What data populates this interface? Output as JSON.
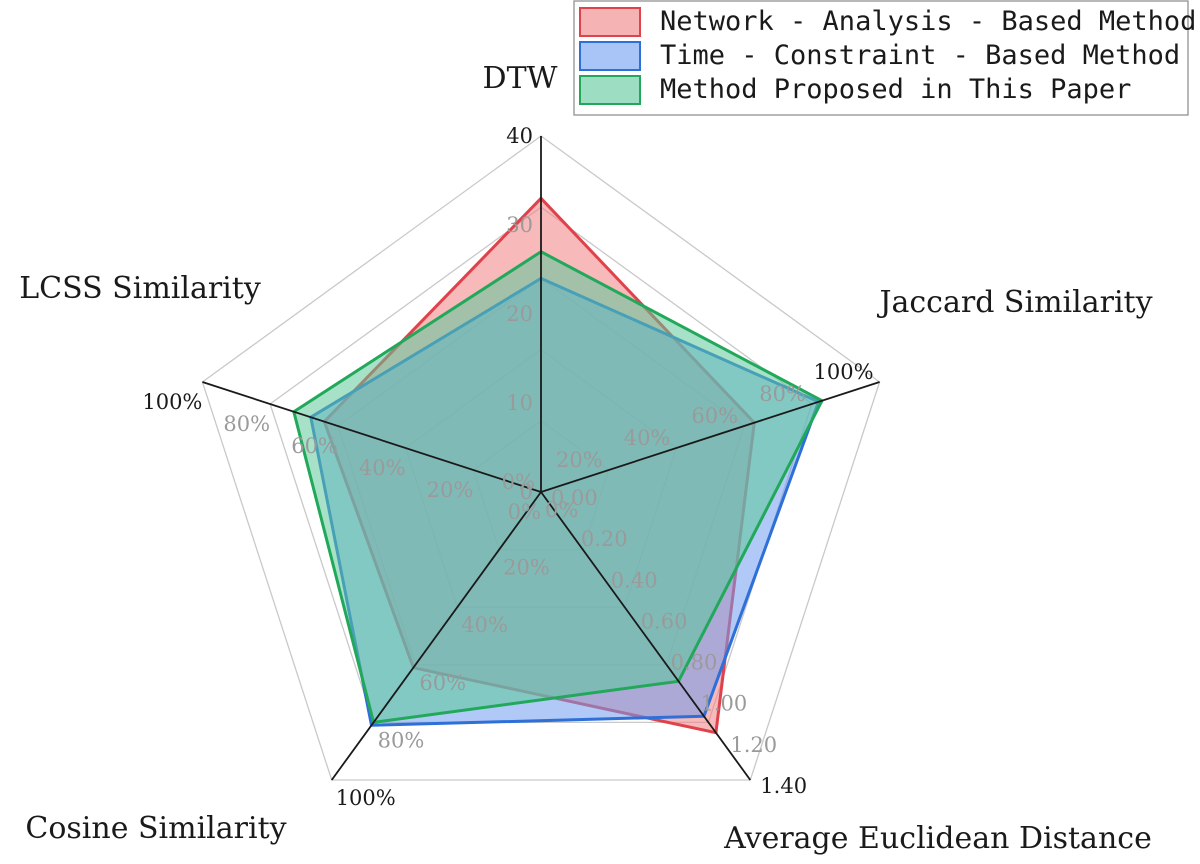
{
  "chart_data": {
    "type": "radar",
    "axes": [
      {
        "key": "dtw",
        "label": "DTW",
        "min": 0,
        "max": 40,
        "ticks": [
          "0",
          "10",
          "20",
          "30",
          "40"
        ]
      },
      {
        "key": "jaccard",
        "label": "Jaccard Similarity",
        "min": 0,
        "max": 100,
        "ticks": [
          "0%",
          "20%",
          "40%",
          "60%",
          "80%",
          "100%"
        ]
      },
      {
        "key": "euclid",
        "label": "Average Euclidean Distance",
        "min": 0,
        "max": 1.4,
        "ticks": [
          "0.00",
          "0.20",
          "0.40",
          "0.60",
          "0.80",
          "1.00",
          "1.20",
          "1.40"
        ]
      },
      {
        "key": "cosine",
        "label": "Cosine Similarity",
        "min": 0,
        "max": 100,
        "ticks": [
          "0%",
          "20%",
          "40%",
          "60%",
          "80%",
          "100%"
        ]
      },
      {
        "key": "lcss",
        "label": "LCSS Similarity",
        "min": 0,
        "max": 100,
        "ticks": [
          "0%",
          "20%",
          "40%",
          "60%",
          "80%",
          "100%"
        ]
      }
    ],
    "series": [
      {
        "name": "Network - Analysis - Based Method",
        "values": [
          33,
          63,
          1.17,
          61,
          64
        ],
        "stroke": "#e0424b",
        "fill": "#f08080"
      },
      {
        "name": "Time - Constraint - Based Method",
        "values": [
          24,
          82,
          1.09,
          81,
          68
        ],
        "stroke": "#2f6fd8",
        "fill": "#6f9cf0"
      },
      {
        "name": "Method Proposed in This Paper",
        "values": [
          27,
          83,
          0.92,
          80,
          73
        ],
        "stroke": "#22a85a",
        "fill": "#5cc89a"
      }
    ],
    "legend_position": "top-right",
    "grid": true
  }
}
